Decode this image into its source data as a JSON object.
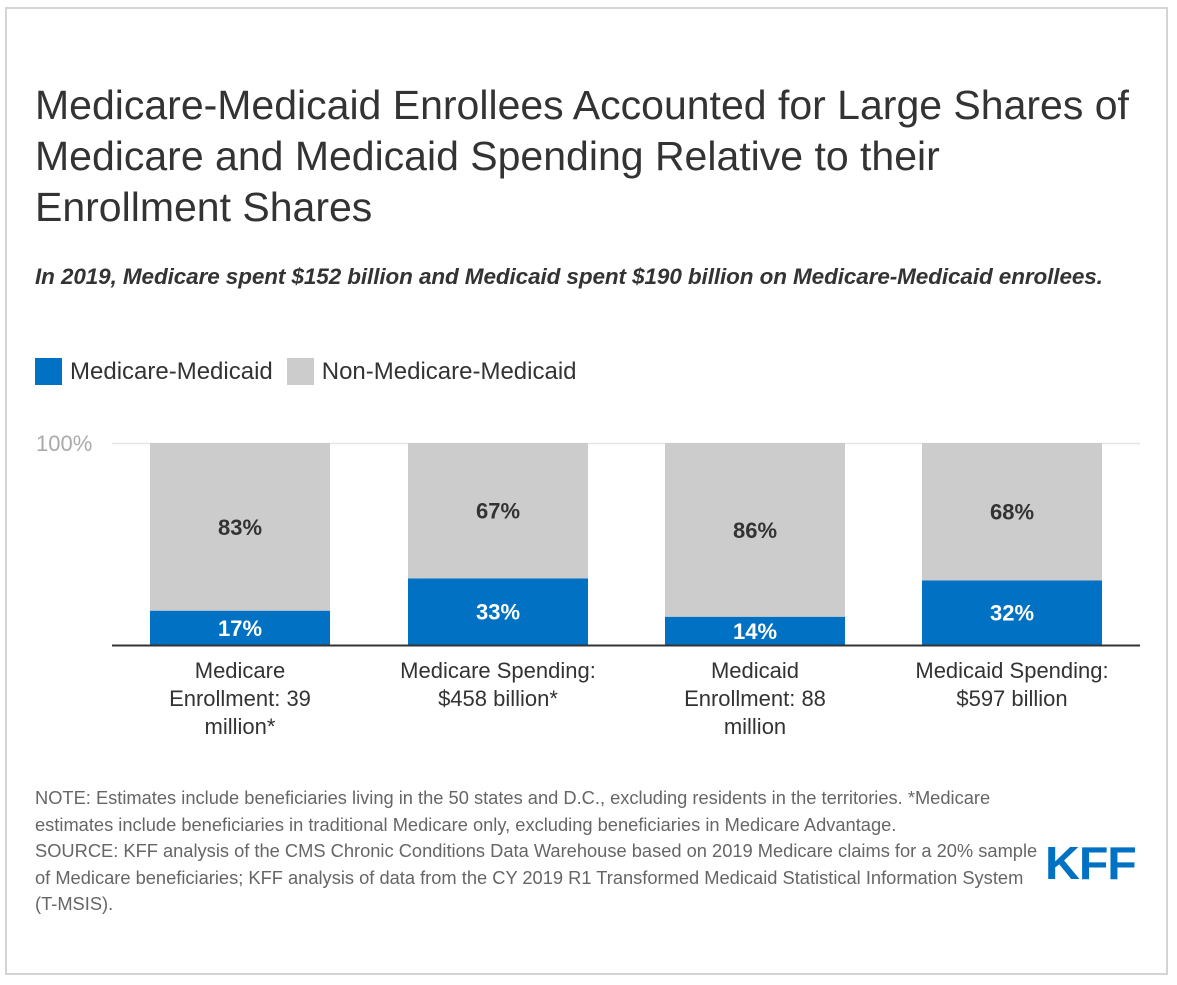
{
  "title": "Medicare-Medicaid Enrollees Accounted for Large Shares of Medicare and Medicaid Spending Relative to their Enrollment Shares",
  "subtitle": "In 2019, Medicare spent $152 billion and Medicaid spent $190 billion on Medicare-Medicaid enrollees.",
  "colors": {
    "medicare_medicaid": "#0071c3",
    "non_medicare_medicaid": "#cccccc",
    "label_on_blue": "#ffffff",
    "label_on_gray": "#333333"
  },
  "legend": [
    {
      "label": "Medicare-Medicaid",
      "color": "#0071c3"
    },
    {
      "label": "Non-Medicare-Medicaid",
      "color": "#cccccc"
    }
  ],
  "chart_data": {
    "type": "bar",
    "stacked": true,
    "title": "Medicare-Medicaid Enrollees Accounted for Large Shares of Medicare and Medicaid Spending Relative to their Enrollment Shares",
    "subtitle": "In 2019, Medicare spent $152 billion and Medicaid spent $190 billion on Medicare-Medicaid enrollees.",
    "categories": [
      "Medicare Enrollment: 39 million*",
      "Medicare Spending: $458 billion*",
      "Medicaid Enrollment: 88 million",
      "Medicaid Spending: $597 billion"
    ],
    "series": [
      {
        "name": "Medicare-Medicaid",
        "values": [
          17,
          33,
          14,
          32
        ],
        "labels": [
          "17%",
          "33%",
          "14%",
          "32%"
        ]
      },
      {
        "name": "Non-Medicare-Medicaid",
        "values": [
          83,
          67,
          86,
          68
        ],
        "labels": [
          "83%",
          "67%",
          "86%",
          "68%"
        ]
      }
    ],
    "xlabel": "",
    "ylabel": "",
    "ylim": [
      0,
      100
    ],
    "yticks": [
      "100%"
    ],
    "grid": true,
    "legend_position": "top-left"
  },
  "category_lines": [
    [
      "Medicare",
      "Enrollment: 39",
      "million*"
    ],
    [
      "Medicare Spending:",
      "$458 billion*"
    ],
    [
      "Medicaid",
      "Enrollment: 88",
      "million"
    ],
    [
      "Medicaid Spending:",
      "$597 billion"
    ]
  ],
  "notes": {
    "note": "NOTE: Estimates include beneficiaries living in the 50 states and D.C., excluding residents in the territories. *Medicare estimates include beneficiaries in traditional Medicare only, excluding beneficiaries in Medicare Advantage.",
    "source": "SOURCE: KFF analysis of the CMS Chronic Conditions Data Warehouse based on 2019 Medicare claims for a 20% sample of Medicare beneficiaries; KFF analysis of data from the CY 2019 R1 Transformed Medicaid Statistical Information System (T-MSIS)."
  },
  "logo": {
    "text": "KFF",
    "color": "#0071c3"
  }
}
